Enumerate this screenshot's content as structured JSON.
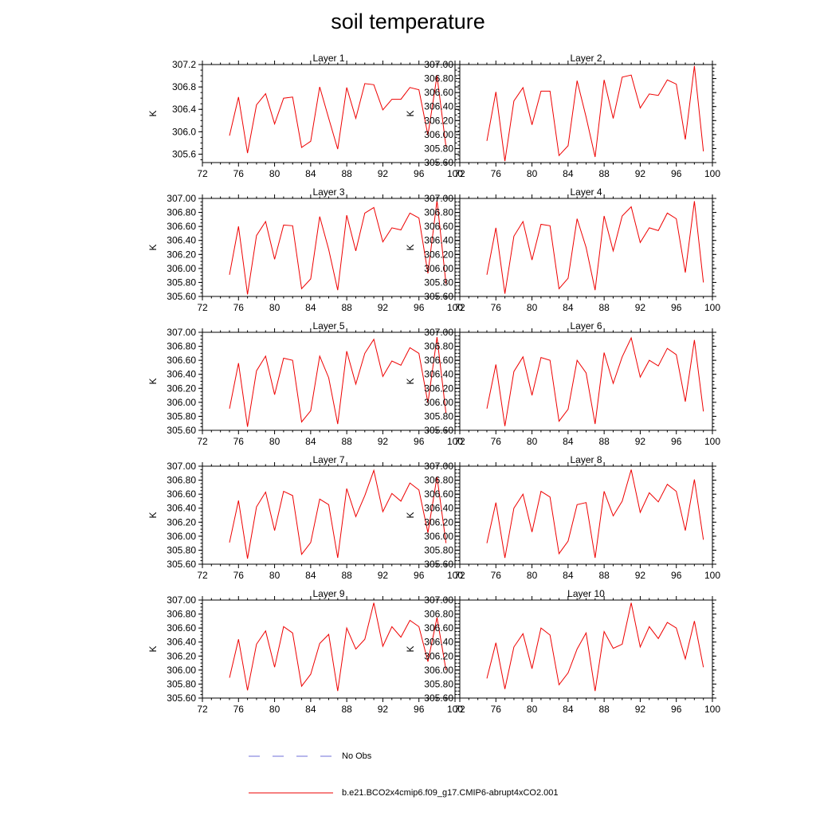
{
  "title": "soil temperature",
  "legend": [
    {
      "label": "No Obs",
      "color": "#6f6fd8",
      "dash": true
    },
    {
      "label": "b.e21.BCO2x4cmip6.f09_g17.CMIP6-abrupt4xCO2.001",
      "color": "#ee0000",
      "dash": false
    }
  ],
  "chart_data": {
    "type": "line",
    "x": [
      75,
      76,
      77,
      78,
      79,
      80,
      81,
      82,
      83,
      84,
      85,
      86,
      87,
      88,
      89,
      90,
      91,
      92,
      93,
      94,
      95,
      96,
      97,
      98,
      99
    ],
    "xlim": [
      72,
      100
    ],
    "xticks": [
      "72",
      "76",
      "80",
      "84",
      "88",
      "92",
      "96",
      "100"
    ],
    "ylabel": "K",
    "series_color": "#ee0000",
    "panels": [
      {
        "title": "Layer 1",
        "ylim": [
          305.45,
          307.2
        ],
        "yticks": [
          "305.6",
          "306.0",
          "306.4",
          "306.8",
          "307.2"
        ],
        "values": [
          305.93,
          306.62,
          305.62,
          306.48,
          306.68,
          306.14,
          306.6,
          306.62,
          305.72,
          305.83,
          306.8,
          306.24,
          305.69,
          306.79,
          306.24,
          306.86,
          306.84,
          306.39,
          306.58,
          306.58,
          306.79,
          306.75,
          305.94,
          307.0,
          305.73
        ]
      },
      {
        "title": "Layer 2",
        "ylim": [
          305.6,
          307.0
        ],
        "yticks": [
          "305.60",
          "305.80",
          "306.00",
          "306.20",
          "306.40",
          "306.60",
          "306.80",
          "307.00"
        ],
        "values": [
          305.91,
          306.61,
          305.62,
          306.48,
          306.67,
          306.14,
          306.62,
          306.62,
          305.7,
          305.84,
          306.77,
          306.25,
          305.68,
          306.78,
          306.23,
          306.82,
          306.85,
          306.38,
          306.58,
          306.56,
          306.78,
          306.72,
          305.93,
          306.98,
          305.76
        ]
      },
      {
        "title": "Layer 3",
        "ylim": [
          305.6,
          307.0
        ],
        "yticks": [
          "305.60",
          "305.80",
          "306.00",
          "306.20",
          "306.40",
          "306.60",
          "306.80",
          "307.00"
        ],
        "values": [
          305.91,
          306.6,
          305.63,
          306.47,
          306.67,
          306.13,
          306.62,
          306.61,
          305.71,
          305.85,
          306.74,
          306.27,
          305.69,
          306.76,
          306.25,
          306.79,
          306.87,
          306.38,
          306.58,
          306.55,
          306.79,
          306.72,
          305.93,
          306.97,
          305.78
        ]
      },
      {
        "title": "Layer 4",
        "ylim": [
          305.6,
          307.0
        ],
        "yticks": [
          "305.60",
          "305.80",
          "306.00",
          "306.20",
          "306.40",
          "306.60",
          "306.80",
          "307.00"
        ],
        "values": [
          305.91,
          306.58,
          305.64,
          306.46,
          306.67,
          306.12,
          306.63,
          306.61,
          305.71,
          305.86,
          306.71,
          306.3,
          305.69,
          306.75,
          306.25,
          306.75,
          306.88,
          306.37,
          306.58,
          306.54,
          306.79,
          306.71,
          305.94,
          306.96,
          305.8
        ]
      },
      {
        "title": "Layer 5",
        "ylim": [
          305.6,
          307.0
        ],
        "yticks": [
          "305.60",
          "305.80",
          "306.00",
          "306.20",
          "306.40",
          "306.60",
          "306.80",
          "307.00"
        ],
        "values": [
          305.91,
          306.56,
          305.65,
          306.45,
          306.66,
          306.11,
          306.63,
          306.6,
          305.72,
          305.88,
          306.66,
          306.35,
          305.69,
          306.73,
          306.26,
          306.7,
          306.9,
          306.37,
          306.59,
          306.53,
          306.78,
          306.7,
          305.99,
          306.93,
          305.84
        ]
      },
      {
        "title": "Layer 6",
        "ylim": [
          305.6,
          307.0
        ],
        "yticks": [
          "305.60",
          "305.80",
          "306.00",
          "306.20",
          "306.40",
          "306.60",
          "306.80",
          "307.00"
        ],
        "values": [
          305.91,
          306.54,
          305.66,
          306.44,
          306.65,
          306.1,
          306.64,
          306.6,
          305.73,
          305.9,
          306.6,
          306.42,
          305.69,
          306.71,
          306.27,
          306.65,
          306.92,
          306.36,
          306.6,
          306.52,
          306.77,
          306.68,
          306.01,
          306.89,
          305.87
        ]
      },
      {
        "title": "Layer 7",
        "ylim": [
          305.6,
          307.0
        ],
        "yticks": [
          "305.60",
          "305.80",
          "306.00",
          "306.20",
          "306.40",
          "306.60",
          "306.80",
          "307.00"
        ],
        "values": [
          305.91,
          306.51,
          305.68,
          306.42,
          306.63,
          306.08,
          306.64,
          306.58,
          305.74,
          305.91,
          306.53,
          306.45,
          305.69,
          306.68,
          306.28,
          306.58,
          306.94,
          306.35,
          306.61,
          306.5,
          306.76,
          306.66,
          306.05,
          306.85,
          305.9
        ]
      },
      {
        "title": "Layer 8",
        "ylim": [
          305.6,
          307.0
        ],
        "yticks": [
          "305.60",
          "305.80",
          "306.00",
          "306.20",
          "306.40",
          "306.60",
          "306.80",
          "307.00"
        ],
        "values": [
          305.9,
          306.48,
          305.69,
          306.4,
          306.6,
          306.06,
          306.64,
          306.56,
          305.75,
          305.93,
          306.45,
          306.48,
          305.69,
          306.64,
          306.29,
          306.5,
          306.95,
          306.34,
          306.62,
          306.49,
          306.74,
          306.64,
          306.08,
          306.81,
          305.95
        ]
      },
      {
        "title": "Layer 9",
        "ylim": [
          305.6,
          307.0
        ],
        "yticks": [
          "305.60",
          "305.80",
          "306.00",
          "306.20",
          "306.40",
          "306.60",
          "306.80",
          "307.00"
        ],
        "values": [
          305.89,
          306.44,
          305.71,
          306.37,
          306.56,
          306.04,
          306.62,
          306.53,
          305.77,
          305.94,
          306.38,
          306.51,
          305.7,
          306.6,
          306.3,
          306.44,
          306.96,
          306.34,
          306.62,
          306.47,
          306.71,
          306.62,
          306.12,
          306.75,
          306.0
        ]
      },
      {
        "title": "Layer 10",
        "ylim": [
          305.6,
          307.0
        ],
        "yticks": [
          "305.60",
          "305.80",
          "306.00",
          "306.20",
          "306.40",
          "306.60",
          "306.80",
          "307.00"
        ],
        "values": [
          305.88,
          306.39,
          305.73,
          306.33,
          306.52,
          306.02,
          306.6,
          306.5,
          305.79,
          305.96,
          306.3,
          306.53,
          305.7,
          306.55,
          306.31,
          306.37,
          306.96,
          306.33,
          306.62,
          306.45,
          306.68,
          306.6,
          306.16,
          306.7,
          306.04
        ]
      }
    ]
  }
}
